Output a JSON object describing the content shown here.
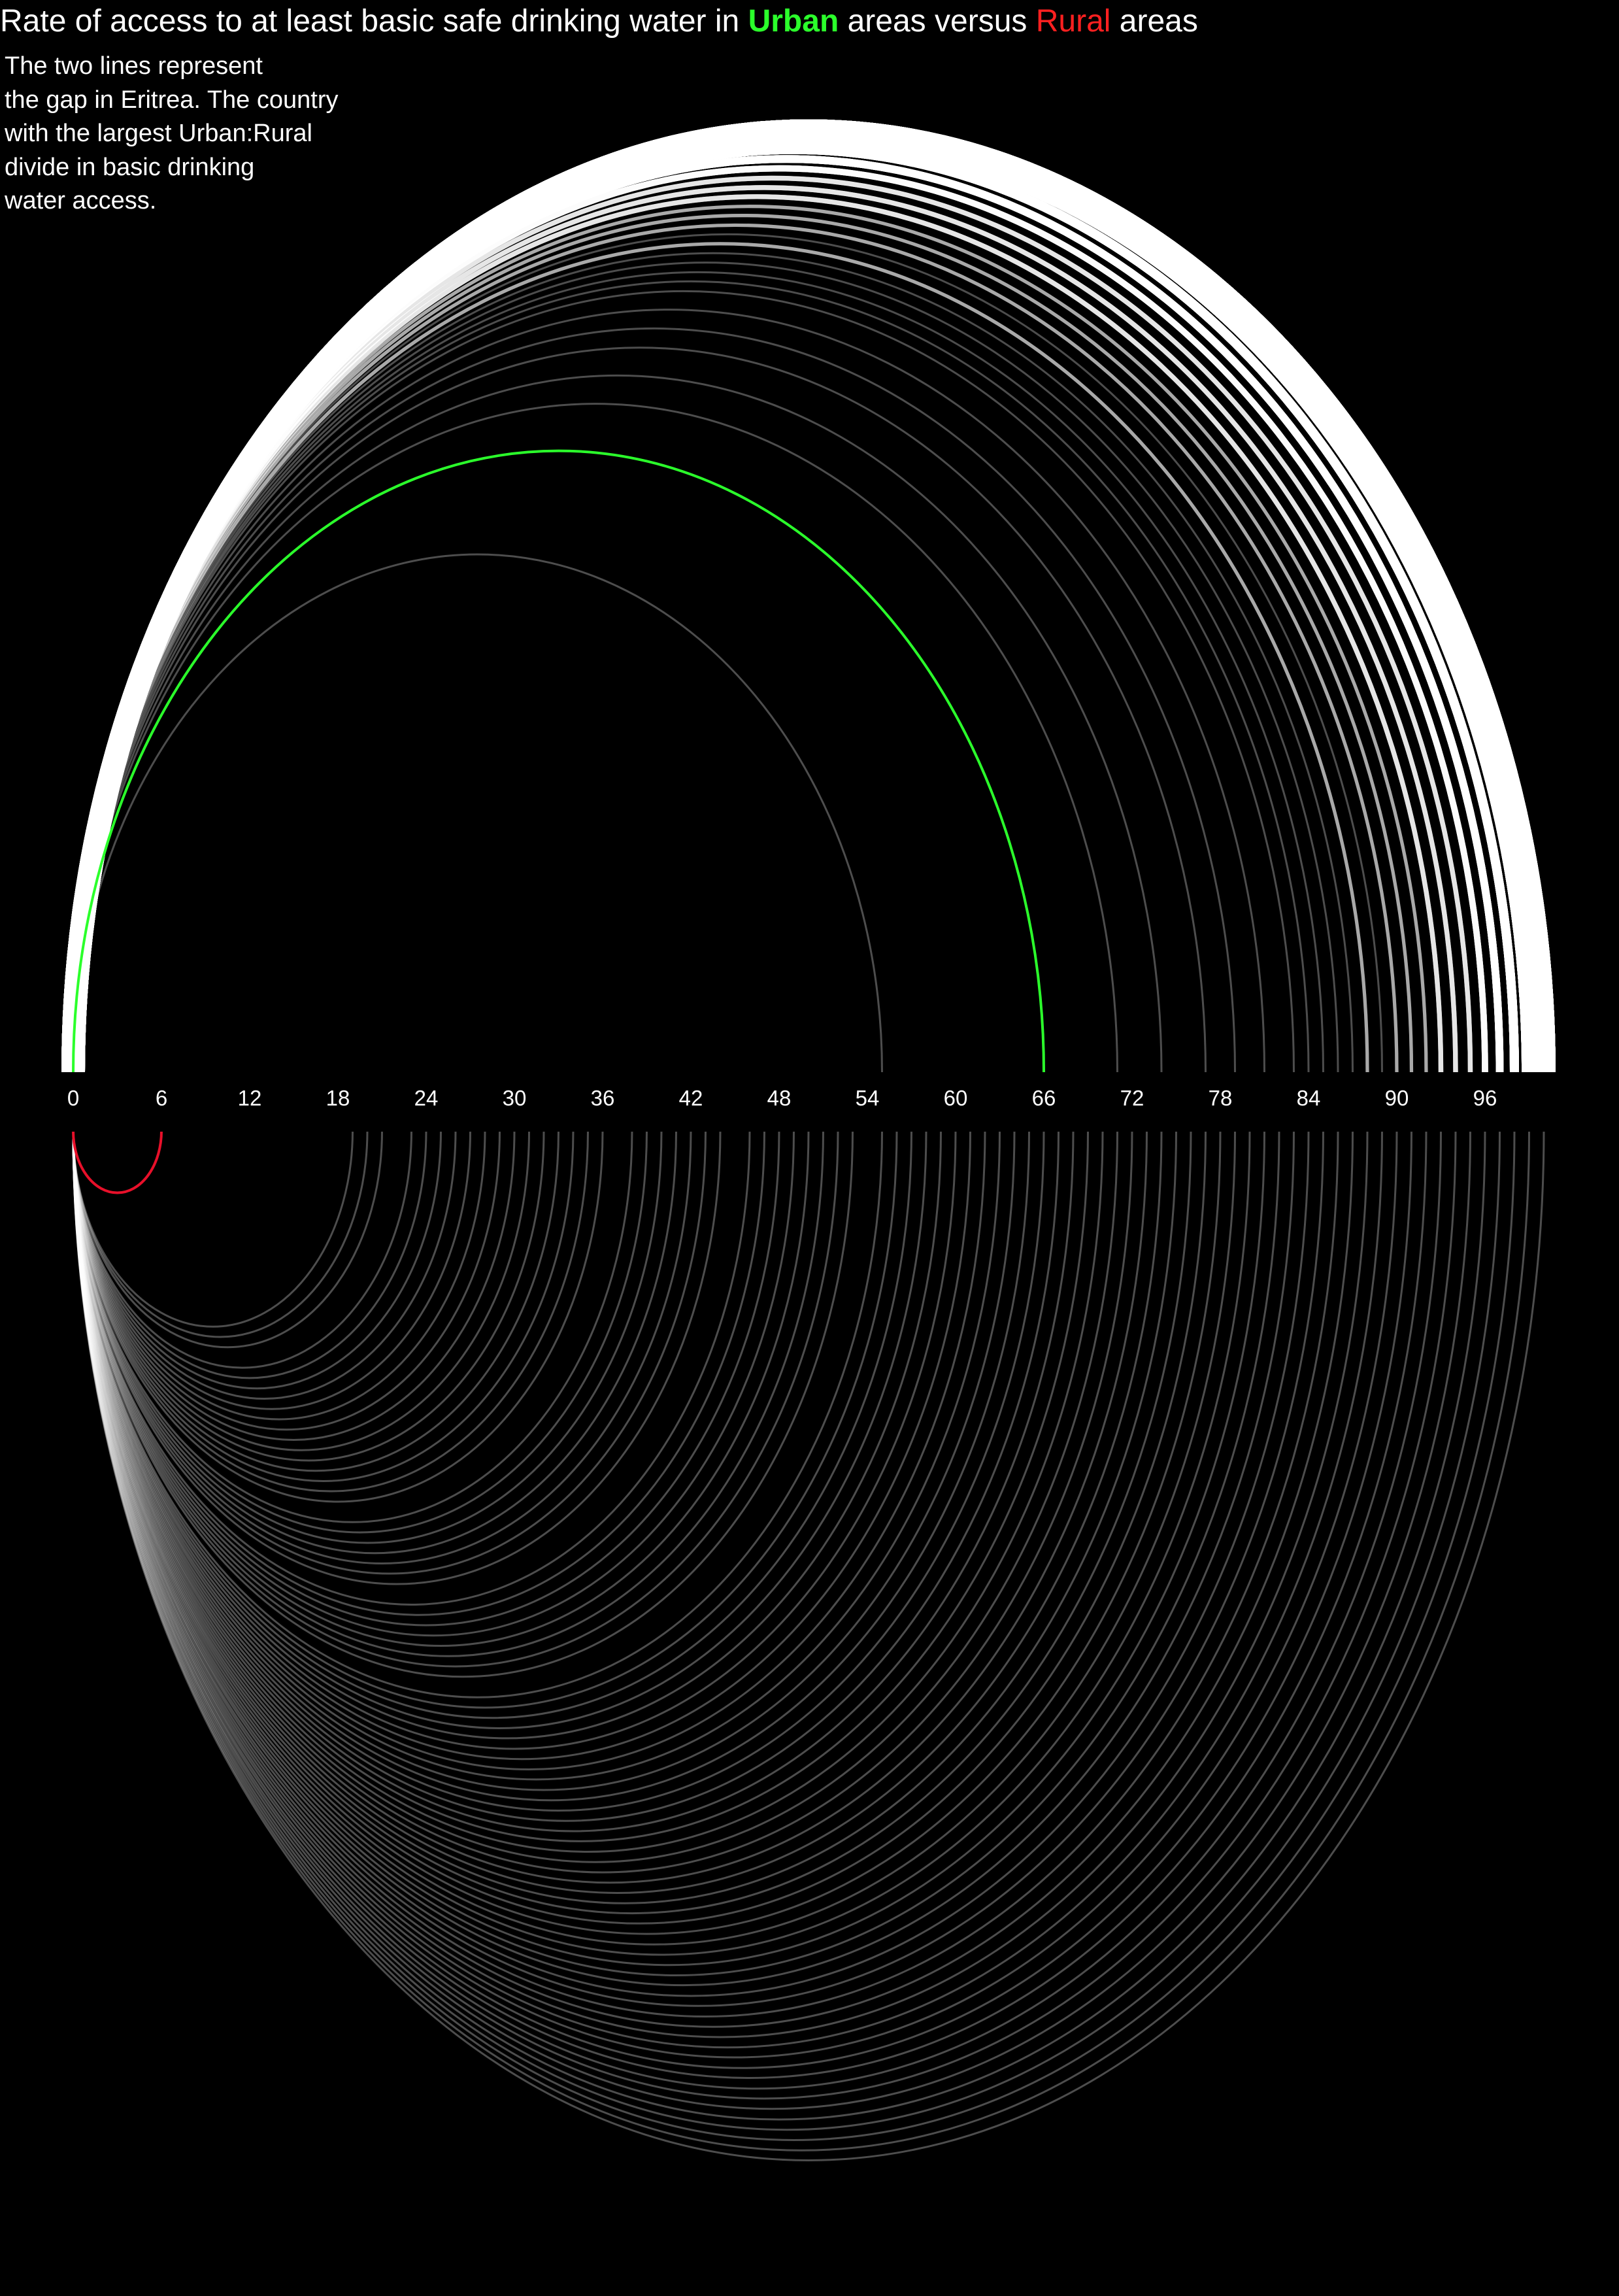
{
  "chart_data": {
    "type": "arc",
    "title": {
      "prefix": "Rate of access to at least basic safe drinking water in ",
      "urban_word": "Urban",
      "middle": " areas versus ",
      "rural_word": "Rural",
      "suffix": " areas"
    },
    "annotation": [
      "The two lines represent",
      "the gap in Eritrea. The country",
      "with the largest Urban:Rural",
      "divide in basic drinking",
      "water access."
    ],
    "x_ticks": [
      0,
      6,
      12,
      18,
      24,
      30,
      36,
      42,
      48,
      54,
      60,
      66,
      72,
      78,
      84,
      90,
      96
    ],
    "xlim": [
      0,
      100
    ],
    "highlight": {
      "country": "Eritrea",
      "urban": 66,
      "rural": 6
    },
    "colors": {
      "urban": "#2bff2b",
      "rural": "#e8102a",
      "other": "#ffffff",
      "background": "#000000"
    },
    "series": [
      {
        "name": "Urban",
        "values": [
          55,
          71,
          74,
          77,
          79,
          81,
          83,
          84,
          85,
          86,
          87,
          88,
          88,
          89,
          90,
          90,
          91,
          91,
          92,
          92,
          93,
          93,
          93,
          94,
          94,
          94,
          95,
          95,
          95,
          96,
          96,
          96,
          96,
          97,
          97,
          97,
          97,
          97,
          98,
          98,
          98,
          98,
          98,
          98,
          99,
          99,
          99,
          99,
          99,
          99,
          99,
          99,
          99,
          99,
          100,
          100,
          100,
          100,
          100,
          100,
          100,
          100,
          100,
          100,
          100,
          100,
          100,
          100,
          100,
          100
        ]
      },
      {
        "name": "Rural",
        "values": [
          19,
          20,
          21,
          23,
          24,
          25,
          26,
          27,
          28,
          29,
          30,
          31,
          32,
          33,
          34,
          35,
          36,
          38,
          39,
          40,
          41,
          42,
          43,
          44,
          46,
          47,
          48,
          49,
          50,
          51,
          52,
          53,
          55,
          56,
          57,
          58,
          59,
          60,
          61,
          62,
          63,
          64,
          65,
          66,
          67,
          68,
          69,
          70,
          71,
          72,
          73,
          74,
          75,
          76,
          77,
          78,
          79,
          80,
          81,
          82,
          83,
          84,
          85,
          86,
          87,
          88,
          89,
          90,
          91,
          92,
          93,
          94,
          95,
          96,
          97,
          98,
          99,
          100
        ]
      }
    ]
  }
}
